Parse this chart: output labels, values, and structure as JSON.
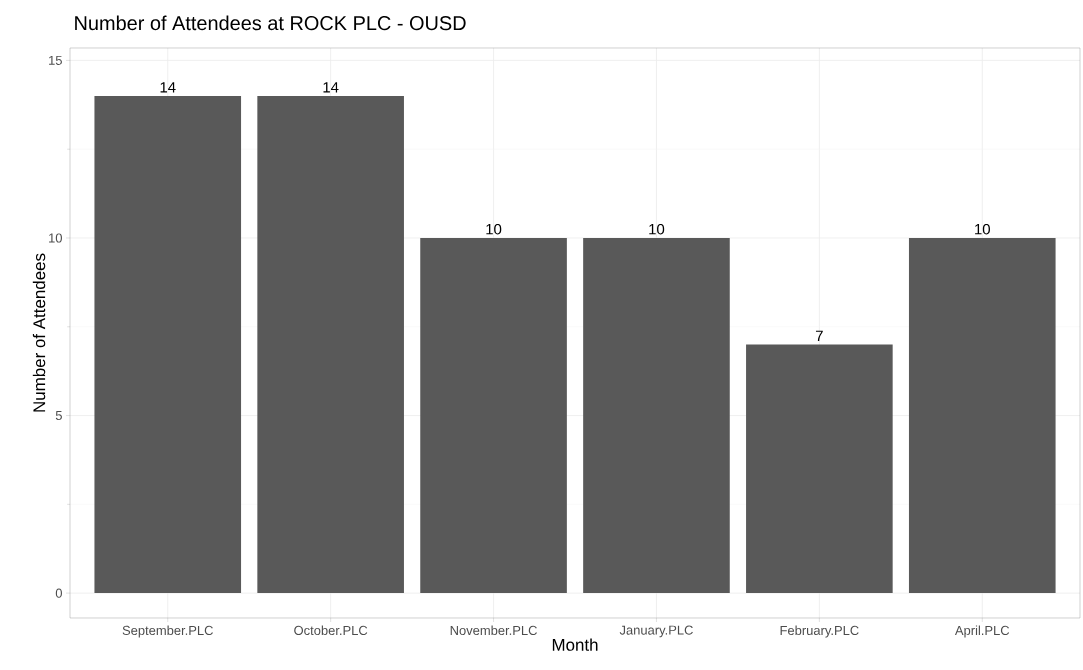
{
  "chart_data": {
    "type": "bar",
    "title": "Number of Attendees at ROCK PLC - OUSD",
    "xlabel": "Month",
    "ylabel": "Number of Attendees",
    "categories": [
      "September.PLC",
      "October.PLC",
      "November.PLC",
      "January.PLC",
      "February.PLC",
      "April.PLC"
    ],
    "values": [
      14,
      14,
      10,
      10,
      7,
      10
    ],
    "color": "#595959",
    "ylim": [
      -0.7,
      15.35
    ],
    "yticks": [
      0,
      5,
      10,
      15
    ],
    "grid": true,
    "data_labels": true
  }
}
